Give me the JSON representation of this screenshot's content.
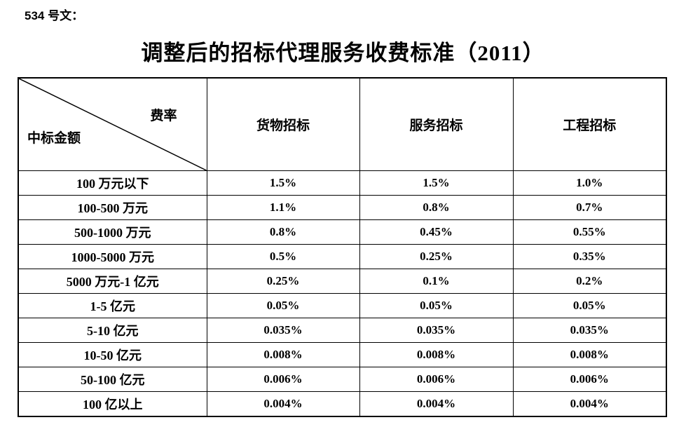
{
  "doc": {
    "ref_label": "534 号文：",
    "title": "调整后的招标代理服务收费标准（2011）"
  },
  "table": {
    "corner": {
      "top_right": "费率",
      "bottom_left": "中标金额"
    },
    "columns": [
      "货物招标",
      "服务招标",
      "工程招标"
    ],
    "rows": [
      {
        "label": "100 万元以下",
        "values": [
          "1.5%",
          "1.5%",
          "1.0%"
        ]
      },
      {
        "label": "100-500 万元",
        "values": [
          "1.1%",
          "0.8%",
          "0.7%"
        ]
      },
      {
        "label": "500-1000 万元",
        "values": [
          "0.8%",
          "0.45%",
          "0.55%"
        ]
      },
      {
        "label": "1000-5000 万元",
        "values": [
          "0.5%",
          "0.25%",
          "0.35%"
        ]
      },
      {
        "label": "5000 万元-1 亿元",
        "values": [
          "0.25%",
          "0.1%",
          "0.2%"
        ]
      },
      {
        "label": "1-5 亿元",
        "values": [
          "0.05%",
          "0.05%",
          "0.05%"
        ]
      },
      {
        "label": "5-10 亿元",
        "values": [
          "0.035%",
          "0.035%",
          "0.035%"
        ]
      },
      {
        "label": "10-50 亿元",
        "values": [
          "0.008%",
          "0.008%",
          "0.008%"
        ]
      },
      {
        "label": "50-100 亿元",
        "values": [
          "0.006%",
          "0.006%",
          "0.006%"
        ]
      },
      {
        "label": "100 亿以上",
        "values": [
          "0.004%",
          "0.004%",
          "0.004%"
        ]
      }
    ],
    "colors": {
      "text": "#000000",
      "border": "#000000",
      "background": "#ffffff"
    }
  }
}
